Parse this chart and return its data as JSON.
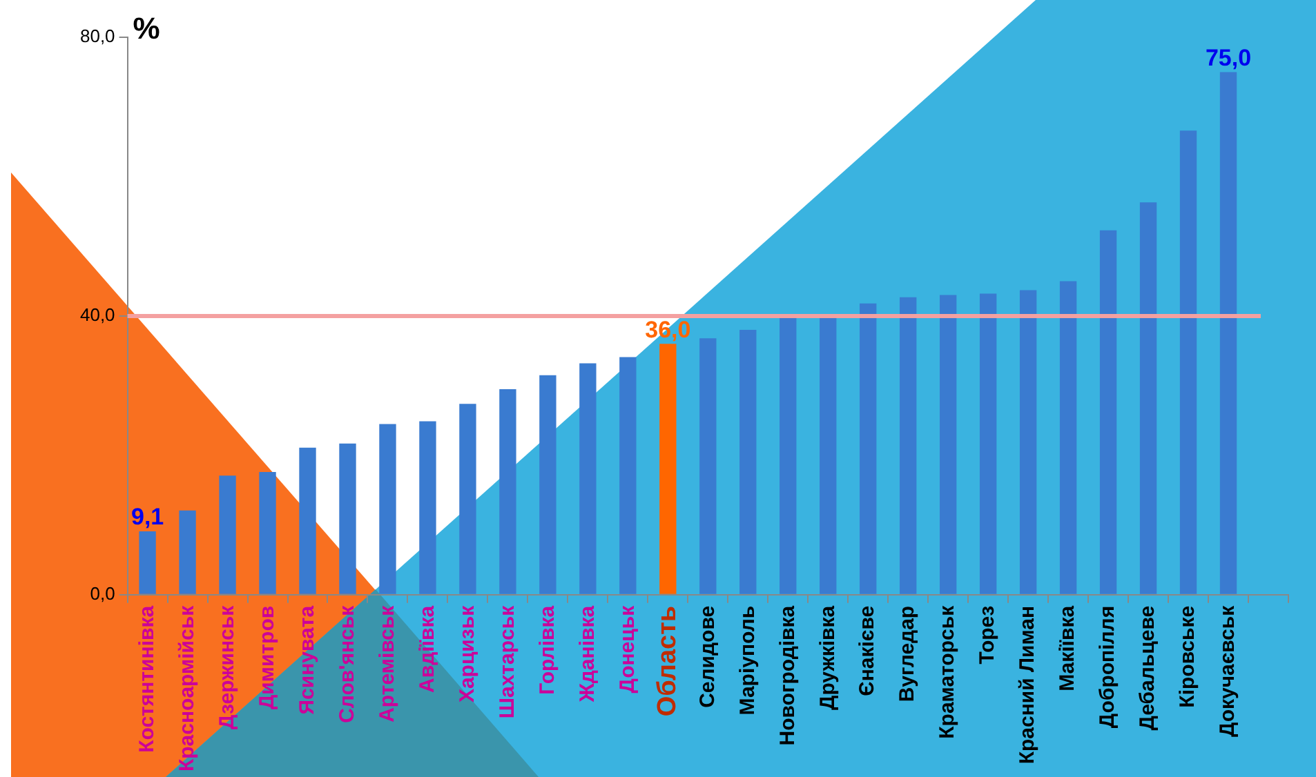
{
  "chart_data": {
    "type": "bar",
    "ylabel": "%",
    "categories": [
      "Костянтинівка",
      "Красноармійськ",
      "Дзержинськ",
      "Димитров",
      "Ясинувата",
      "Слов'янськ",
      "Артемівськ",
      "Авдіївка",
      "Харцизьк",
      "Шахтарськ",
      "Горлівка",
      "Жданівка",
      "Донецьк",
      "Область",
      "Селидове",
      "Маріуполь",
      "Новогродівка",
      "Дружківка",
      "Єнакієве",
      "Вугледар",
      "Краматорськ",
      "Торез",
      "Красний Лиман",
      "Макіївка",
      "Добропілля",
      "Дебальцеве",
      "Кіровське",
      "Докучаєвськ",
      null
    ],
    "values": [
      9.1,
      12.1,
      17.1,
      17.6,
      21.1,
      21.7,
      24.5,
      24.9,
      27.4,
      29.5,
      31.5,
      33.2,
      34.1,
      36.0,
      36.8,
      38.0,
      39.9,
      40.2,
      41.8,
      42.7,
      43.0,
      43.2,
      43.7,
      45.0,
      52.3,
      56.3,
      66.6,
      75.0,
      null
    ],
    "colors": [
      "#3a7bd0",
      "#3a7bd0",
      "#3a7bd0",
      "#3a7bd0",
      "#3a7bd0",
      "#3a7bd0",
      "#3a7bd0",
      "#3a7bd0",
      "#3a7bd0",
      "#3a7bd0",
      "#3a7bd0",
      "#3a7bd0",
      "#3a7bd0",
      "#ff6600",
      "#3a7bd0",
      "#3a7bd0",
      "#3a7bd0",
      "#3a7bd0",
      "#3a7bd0",
      "#3a7bd0",
      "#3a7bd0",
      "#3a7bd0",
      "#3a7bd0",
      "#3a7bd0",
      "#3a7bd0",
      "#3a7bd0",
      "#3a7bd0",
      "#3a7bd0",
      "#3a7bd0"
    ],
    "value_labels": [
      "9,1",
      null,
      null,
      null,
      null,
      null,
      null,
      null,
      null,
      null,
      null,
      null,
      null,
      "36,0",
      null,
      null,
      null,
      null,
      null,
      null,
      null,
      null,
      null,
      null,
      null,
      null,
      null,
      "75,0",
      null
    ],
    "ylim": [
      0,
      80
    ],
    "yticks": [
      {
        "value": 0,
        "label": "0,0"
      },
      {
        "value": 40,
        "label": "40,0"
      },
      {
        "value": 80,
        "label": "80,0"
      }
    ],
    "ref_lines": [
      {
        "axis": "y",
        "value": 40,
        "color": "#f4a0a0"
      }
    ],
    "grid": false,
    "legend": false
  }
}
